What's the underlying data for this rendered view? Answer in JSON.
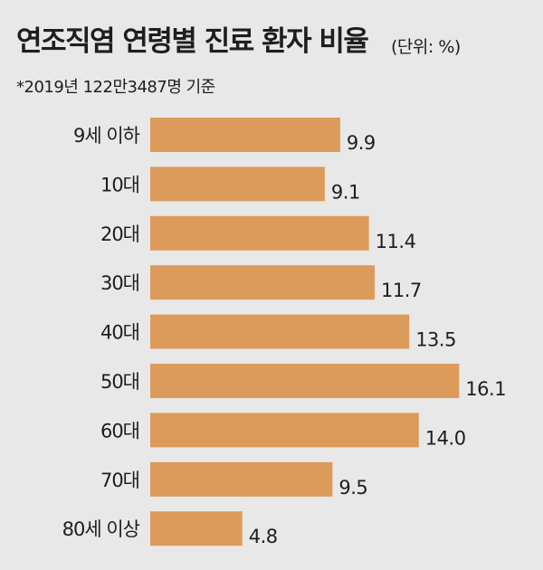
{
  "title": "연조직염 연령별 진료 환자 비율",
  "unit": "(단위: %)",
  "subtitle": "*2019년 122만3487명 기준",
  "colors": {
    "bar": "#dc9b5a",
    "background": "#e8e8e8",
    "text": "#1e1e1e"
  },
  "chart_data": {
    "type": "bar",
    "orientation": "horizontal",
    "title": "연조직염 연령별 진료 환자 비율",
    "subtitle": "*2019년 122만3487명 기준",
    "unit": "(단위: %)",
    "categories": [
      "9세 이하",
      "10대",
      "20대",
      "30대",
      "40대",
      "50대",
      "60대",
      "70대",
      "80세 이상"
    ],
    "values": [
      9.9,
      9.1,
      11.4,
      11.7,
      13.5,
      16.1,
      14.0,
      9.5,
      4.8
    ],
    "value_labels": [
      "9.9",
      "9.1",
      "11.4",
      "11.7",
      "13.5",
      "16.1",
      "14.0",
      "9.5",
      "4.8"
    ],
    "grid": false,
    "legend": "none"
  }
}
